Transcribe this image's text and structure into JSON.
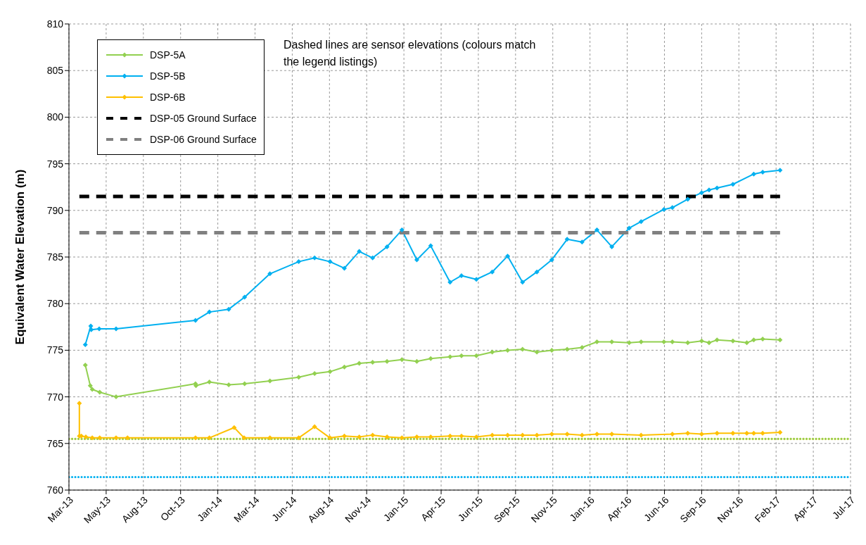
{
  "chart_data": {
    "type": "line",
    "ylabel": "Equivalent Water Elevation (m)",
    "annotations": [
      "Dashed lines are sensor elevations (colours match the legend listings)"
    ],
    "xlim": [
      "2013-03-15",
      "2017-07-07"
    ],
    "xticks": [
      {
        "value": "2013-03-15",
        "label": "Mar-13"
      },
      {
        "value": "2013-05-29",
        "label": "May-13"
      },
      {
        "value": "2013-08-12",
        "label": "Aug-13"
      },
      {
        "value": "2013-10-26",
        "label": "Oct-13"
      },
      {
        "value": "2014-01-09",
        "label": "Jan-14"
      },
      {
        "value": "2014-03-25",
        "label": "Mar-14"
      },
      {
        "value": "2014-06-08",
        "label": "Jun-14"
      },
      {
        "value": "2014-08-22",
        "label": "Aug-14"
      },
      {
        "value": "2014-11-05",
        "label": "Nov-14"
      },
      {
        "value": "2015-01-19",
        "label": "Jan-15"
      },
      {
        "value": "2015-04-04",
        "label": "Apr-15"
      },
      {
        "value": "2015-06-18",
        "label": "Jun-15"
      },
      {
        "value": "2015-09-01",
        "label": "Sep-15"
      },
      {
        "value": "2015-11-15",
        "label": "Nov-15"
      },
      {
        "value": "2016-01-29",
        "label": "Jan-16"
      },
      {
        "value": "2016-04-13",
        "label": "Apr-16"
      },
      {
        "value": "2016-06-27",
        "label": "Jun-16"
      },
      {
        "value": "2016-09-10",
        "label": "Sep-16"
      },
      {
        "value": "2016-11-24",
        "label": "Nov-16"
      },
      {
        "value": "2017-02-07",
        "label": "Feb-17"
      },
      {
        "value": "2017-04-23",
        "label": "Apr-17"
      },
      {
        "value": "2017-07-07",
        "label": "Jul-17"
      }
    ],
    "ylim": [
      760,
      810
    ],
    "yticks": [
      760,
      765,
      770,
      775,
      780,
      785,
      790,
      795,
      800,
      805,
      810
    ],
    "grid": true,
    "legend": "top left",
    "marker": "diamond",
    "series": [
      {
        "name": "DSP-5A",
        "color": "#92d050",
        "x": [
          "2013-04-17",
          "2013-04-27",
          "2013-05-01",
          "2013-05-16",
          "2013-06-18",
          "2013-11-25",
          "2013-11-26",
          "2013-12-23",
          "2014-01-31",
          "2014-03-04",
          "2014-04-24",
          "2014-06-21",
          "2014-07-23",
          "2014-08-23",
          "2014-09-21",
          "2014-10-21",
          "2014-11-17",
          "2014-12-16",
          "2015-01-15",
          "2015-02-14",
          "2015-03-14",
          "2015-04-22",
          "2015-05-15",
          "2015-06-14",
          "2015-07-16",
          "2015-08-16",
          "2015-09-15",
          "2015-10-14",
          "2015-11-13",
          "2015-12-14",
          "2016-01-13",
          "2016-02-12",
          "2016-03-13",
          "2016-04-17",
          "2016-05-11",
          "2016-06-26",
          "2016-07-13",
          "2016-08-13",
          "2016-09-10",
          "2016-09-25",
          "2016-10-11",
          "2016-11-12",
          "2016-12-10",
          "2016-12-24",
          "2017-01-11",
          "2017-02-15"
        ],
        "values": [
          773.4,
          771.2,
          770.8,
          770.5,
          770.0,
          771.4,
          771.2,
          771.6,
          771.3,
          771.4,
          771.7,
          772.1,
          772.5,
          772.7,
          773.2,
          773.6,
          773.7,
          773.8,
          774.0,
          773.8,
          774.1,
          774.3,
          774.4,
          774.4,
          774.8,
          775.0,
          775.1,
          774.8,
          775.0,
          775.1,
          775.3,
          775.9,
          775.9,
          775.8,
          775.9,
          775.9,
          775.9,
          775.8,
          776.0,
          775.8,
          776.1,
          776.0,
          775.8,
          776.1,
          776.2,
          776.1
        ]
      },
      {
        "name": "DSP-5B",
        "color": "#00b0f0",
        "x": [
          "2013-04-17",
          "2013-04-28",
          "2013-04-29",
          "2013-05-15",
          "2013-06-18",
          "2013-11-25",
          "2013-12-23",
          "2014-01-31",
          "2014-03-04",
          "2014-04-24",
          "2014-06-21",
          "2014-07-23",
          "2014-08-23",
          "2014-09-21",
          "2014-10-21",
          "2014-11-17",
          "2014-12-16",
          "2015-01-15",
          "2015-02-14",
          "2015-03-14",
          "2015-04-22",
          "2015-05-15",
          "2015-06-14",
          "2015-07-16",
          "2015-08-16",
          "2015-09-15",
          "2015-10-14",
          "2015-11-13",
          "2015-12-14",
          "2016-01-13",
          "2016-02-12",
          "2016-03-13",
          "2016-04-17",
          "2016-05-11",
          "2016-06-26",
          "2016-07-13",
          "2016-08-13",
          "2016-09-10",
          "2016-09-25",
          "2016-10-11",
          "2016-11-12",
          "2016-12-24",
          "2017-01-11",
          "2017-02-15"
        ],
        "values": [
          775.6,
          777.6,
          777.2,
          777.3,
          777.3,
          778.2,
          779.1,
          779.4,
          780.7,
          783.2,
          784.5,
          784.9,
          784.5,
          783.8,
          785.6,
          784.9,
          786.1,
          787.9,
          784.7,
          786.2,
          782.3,
          783.0,
          782.6,
          783.4,
          785.1,
          782.3,
          783.4,
          784.7,
          786.9,
          786.6,
          787.9,
          786.1,
          788.1,
          788.8,
          790.1,
          790.3,
          791.2,
          791.9,
          792.2,
          792.4,
          792.8,
          793.9,
          794.1,
          794.3
        ]
      },
      {
        "name": "DSP-6B",
        "color": "#ffc000",
        "x": [
          "2013-04-05",
          "2013-04-05",
          "2013-04-09",
          "2013-04-18",
          "2013-05-01",
          "2013-05-16",
          "2013-06-18",
          "2013-07-11",
          "2013-11-25",
          "2013-12-23",
          "2014-02-11",
          "2014-03-03",
          "2014-04-24",
          "2014-06-21",
          "2014-07-23",
          "2014-08-23",
          "2014-09-21",
          "2014-10-21",
          "2014-11-17",
          "2014-12-16",
          "2015-01-15",
          "2015-02-14",
          "2015-03-14",
          "2015-04-22",
          "2015-05-15",
          "2015-06-14",
          "2015-07-16",
          "2015-08-16",
          "2015-09-15",
          "2015-10-14",
          "2015-11-13",
          "2015-12-14",
          "2016-01-13",
          "2016-02-12",
          "2016-03-13",
          "2016-05-11",
          "2016-07-13",
          "2016-08-13",
          "2016-09-10",
          "2016-10-11",
          "2016-11-12",
          "2016-12-10",
          "2016-12-24",
          "2017-01-11",
          "2017-02-15"
        ],
        "values": [
          769.3,
          765.8,
          765.8,
          765.7,
          765.6,
          765.6,
          765.6,
          765.6,
          765.6,
          765.6,
          766.7,
          765.6,
          765.6,
          765.6,
          766.8,
          765.6,
          765.8,
          765.7,
          765.9,
          765.7,
          765.6,
          765.7,
          765.7,
          765.8,
          765.8,
          765.7,
          765.9,
          765.9,
          765.9,
          765.9,
          766.0,
          766.0,
          765.9,
          766.0,
          766.0,
          765.9,
          766.0,
          766.1,
          766.0,
          766.1,
          766.1,
          766.1,
          766.1,
          766.1,
          766.2
        ]
      },
      {
        "name": "DSP-05 Ground Surface",
        "color": "#000000",
        "line_style": "dashed",
        "marker": "none",
        "x": [
          "2013-04-05",
          "2017-02-15"
        ],
        "values": [
          791.5,
          791.5
        ]
      },
      {
        "name": "DSP-06 Ground Surface",
        "color": "#808080",
        "line_style": "dashed",
        "marker": "none",
        "x": [
          "2013-04-05",
          "2017-02-15"
        ],
        "values": [
          787.6,
          787.6
        ]
      }
    ],
    "ref_lines": [
      {
        "axis": "y",
        "value": 765.5,
        "color": "#ffc000",
        "line_style": "dotted"
      },
      {
        "axis": "y",
        "value": 765.5,
        "color": "#92d050",
        "line_style": "dotted"
      },
      {
        "axis": "y",
        "value": 761.4,
        "color": "#00b0f0",
        "line_style": "dotted"
      }
    ]
  }
}
